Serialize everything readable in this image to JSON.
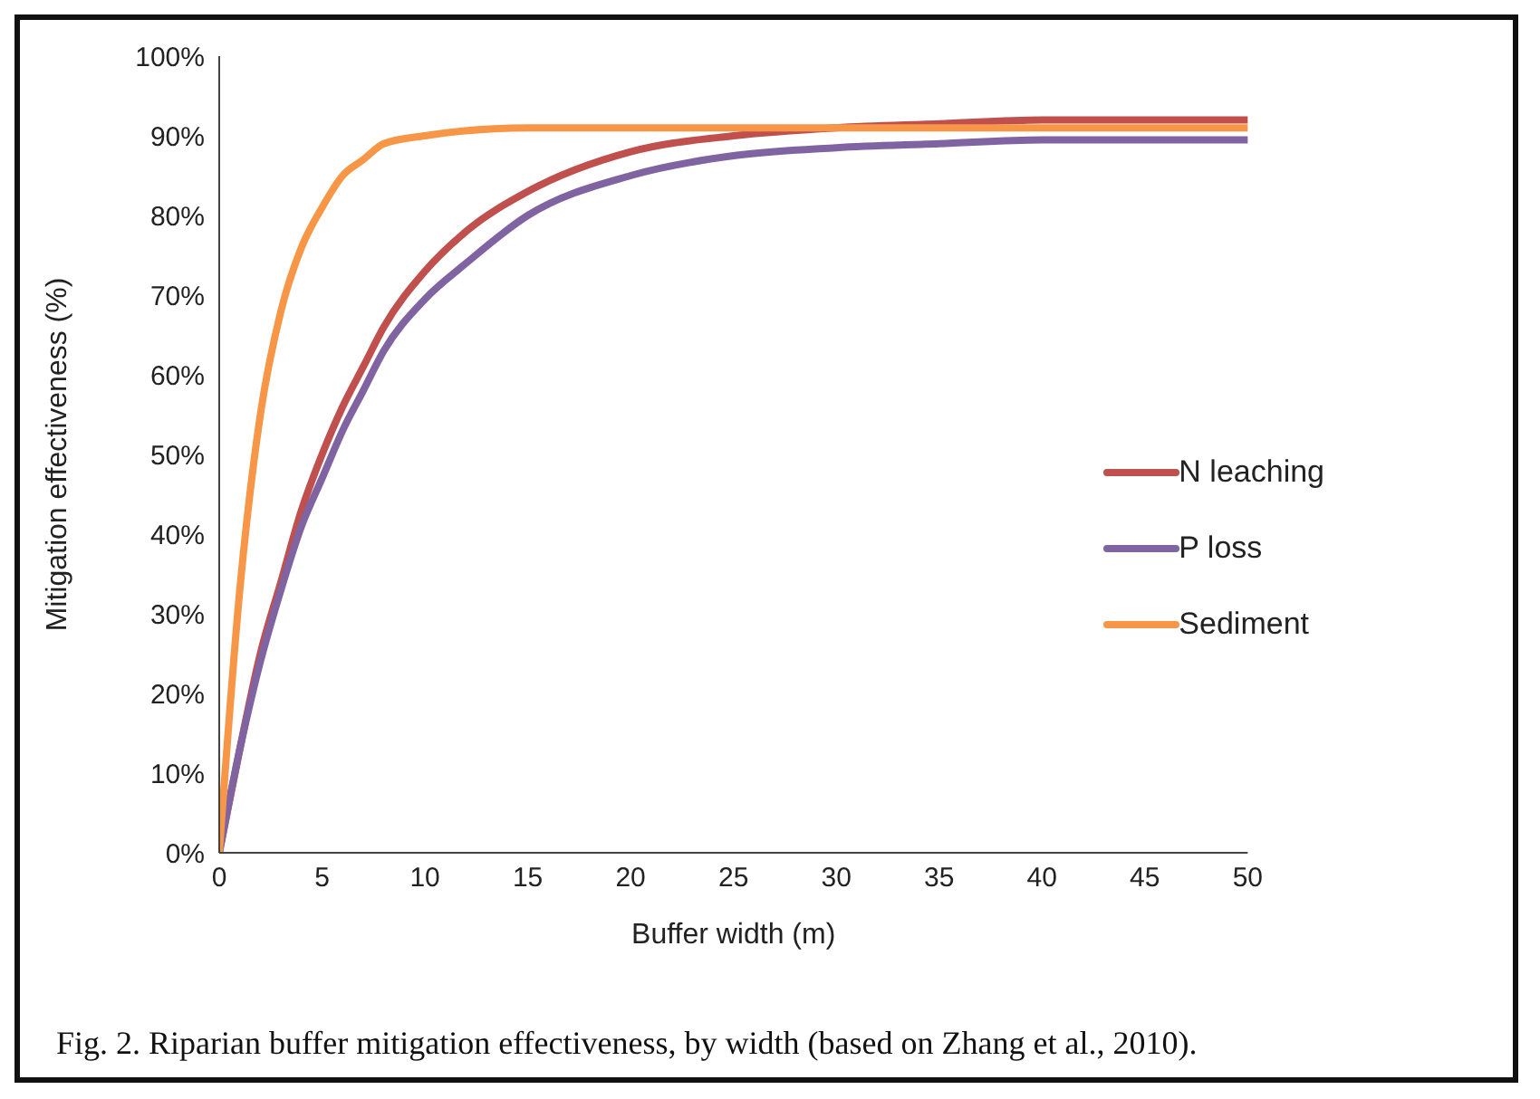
{
  "chart_data": {
    "type": "line",
    "xlabel": "Buffer width (m)",
    "ylabel": "Mitigation effectiveness (%)",
    "xlim": [
      0,
      50
    ],
    "xticks": [
      0,
      5,
      10,
      15,
      20,
      25,
      30,
      35,
      40,
      45,
      50
    ],
    "ylim": [
      0,
      100
    ],
    "yticks": [
      {
        "value": 0,
        "label": "0%"
      },
      {
        "value": 10,
        "label": "10%"
      },
      {
        "value": 20,
        "label": "20%"
      },
      {
        "value": 30,
        "label": "30%"
      },
      {
        "value": 40,
        "label": "40%"
      },
      {
        "value": 50,
        "label": "50%"
      },
      {
        "value": 60,
        "label": "60%"
      },
      {
        "value": 70,
        "label": "70%"
      },
      {
        "value": 80,
        "label": "80%"
      },
      {
        "value": 90,
        "label": "90%"
      },
      {
        "value": 100,
        "label": "100%"
      }
    ],
    "grid": false,
    "legend": "right",
    "marker": "none",
    "line_style": "solid",
    "series": [
      {
        "name": "N leaching",
        "color": "#c0504d",
        "x": [
          0,
          1,
          2,
          3,
          4,
          5,
          6,
          7,
          8,
          10,
          12,
          15,
          20,
          25,
          30,
          35,
          40,
          50
        ],
        "values": [
          0,
          13,
          25,
          34,
          43,
          50,
          56,
          61,
          66,
          73,
          78,
          83,
          88,
          90,
          91,
          91.5,
          92,
          92
        ]
      },
      {
        "name": "P loss",
        "color": "#8064a2",
        "x": [
          0,
          1,
          2,
          3,
          4,
          5,
          6,
          7,
          8,
          10,
          12,
          15,
          20,
          25,
          30,
          35,
          40,
          50
        ],
        "values": [
          0,
          13,
          24,
          33,
          41,
          47,
          53,
          58,
          63,
          69.5,
          74,
          80,
          85,
          87.5,
          88.5,
          89,
          89.5,
          89.5
        ]
      },
      {
        "name": "Sediment",
        "color": "#f79646",
        "x": [
          0,
          1,
          2,
          3,
          4,
          5,
          6,
          7,
          8,
          10,
          15,
          20,
          30,
          50
        ],
        "values": [
          0,
          33,
          55,
          68,
          76,
          81,
          85,
          87,
          89,
          90,
          91,
          91,
          91,
          91
        ]
      }
    ],
    "annotations": [
      "Fig. 2. Riparian buffer mitigation effectiveness, by width (based on Zhang et al., 2010)."
    ]
  }
}
